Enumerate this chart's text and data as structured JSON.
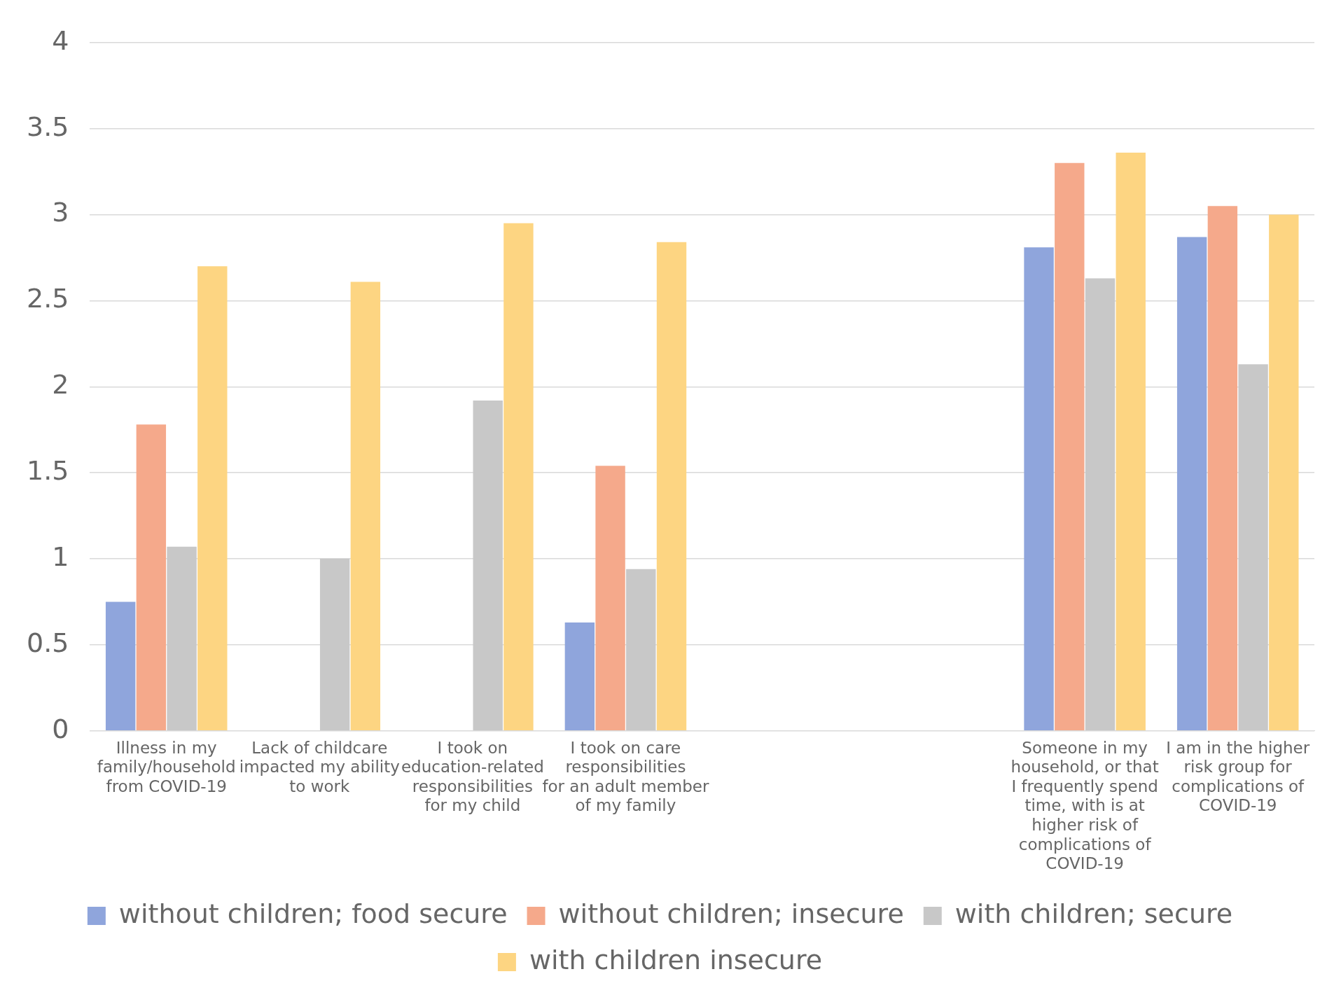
{
  "chart_data": {
    "type": "bar",
    "categories": [
      "Illness in my family/household from COVID-19",
      "Lack of childcare impacted my ability to work",
      "I took on education-related responsibilities for my child",
      "I took on care responsibilities for an adult member of my family",
      null,
      null,
      "Someone in my household, or that I frequently spend time, with is at higher risk of complications of COVID-19",
      "I am in the higher risk group for complications of COVID-19"
    ],
    "series": [
      {
        "name": "without children; food secure",
        "color": "#8fa5dc",
        "values": [
          0.75,
          null,
          null,
          0.63,
          null,
          null,
          2.81,
          2.87
        ]
      },
      {
        "name": "without children; insecure",
        "color": "#f5a98b",
        "values": [
          1.78,
          null,
          null,
          1.54,
          null,
          null,
          3.3,
          3.05
        ]
      },
      {
        "name": "with children; secure",
        "color": "#c8c8c8",
        "values": [
          1.07,
          1.0,
          1.92,
          0.94,
          null,
          null,
          2.63,
          2.13
        ]
      },
      {
        "name": "with children insecure",
        "color": "#fdd582",
        "values": [
          2.7,
          2.61,
          2.95,
          2.84,
          null,
          null,
          3.36,
          3.0
        ]
      }
    ],
    "ylim": [
      0,
      4
    ],
    "yticks": [
      0,
      0.5,
      1,
      1.5,
      2,
      2.5,
      3,
      3.5,
      4
    ],
    "grid": "y",
    "legend": "bottom"
  }
}
